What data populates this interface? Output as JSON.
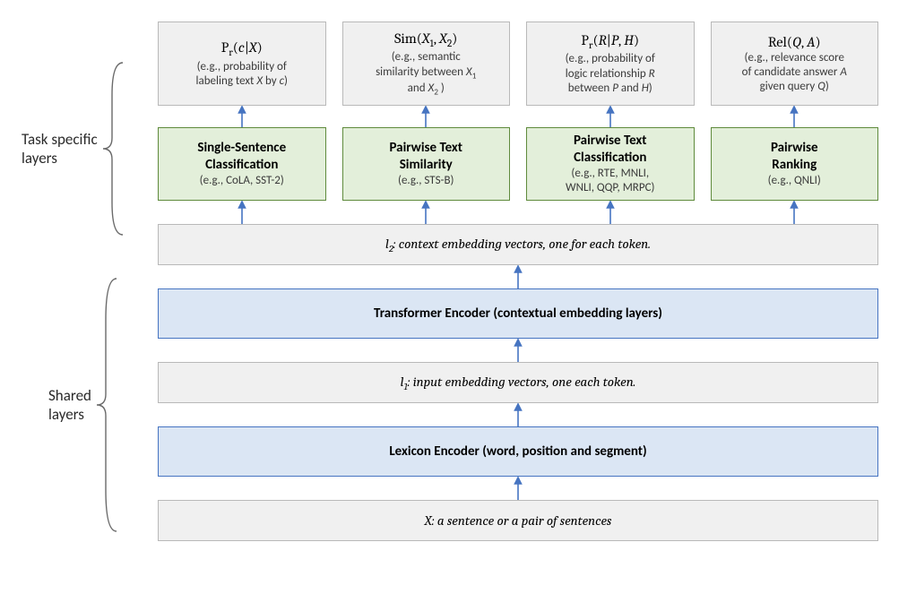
{
  "colors": {
    "gray_fill": "#f0f0f0",
    "gray_border": "#b9b9b9",
    "green_fill": "#e3efda",
    "green_border": "#5f8b3c",
    "blue_fill": "#dbe6f4",
    "blue_border": "#4674c1",
    "arrow": "#4674c1",
    "background": "#ffffff"
  },
  "layout": {
    "task_box_width": 183,
    "task_box_gap": 18,
    "metric_box_height": 94,
    "task_box_height": 78,
    "full_box_height": 46,
    "transformer_box_height": 56,
    "arrow_short": 24,
    "arrow_mid": 26
  },
  "labels": {
    "task_specific": "Task specific\nlayers",
    "shared": "Shared\nlayers"
  },
  "metrics": [
    {
      "formula_html": "P<sub>r</sub>(<i>c</i>|<i>X</i>)",
      "desc_html": "(e.g., probability of<br>labeling text <i>X</i> by <i>c</i>)"
    },
    {
      "formula_html": "Sim(<i>X</i><sub>1</sub>, <i>X</i><sub>2</sub>)",
      "desc_html": "(e.g., semantic<br>similarity between <i>X</i><sub>1</sub><br>and <i>X</i><sub>2</sub> )"
    },
    {
      "formula_html": "P<sub>r</sub>(<i>R</i>|<i>P</i>, <i>H</i>)",
      "desc_html": "(e.g., probability of<br>logic relationship <i>R</i><br>between <i>P</i> and <i>H</i>)"
    },
    {
      "formula_html": "Rel(<i>Q</i>, <i>A</i>)",
      "desc_html": "(e.g., relevance score<br>of candidate answer <i>A</i><br>given query <i>Q</i>)"
    }
  ],
  "tasks": [
    {
      "title_html": "Single-Sentence<br>Classification",
      "example": "(e.g., CoLA, SST-2)"
    },
    {
      "title_html": "Pairwise Text<br>Similarity",
      "example": "(e.g., STS-B)"
    },
    {
      "title_html": "Pairwise Text<br>Classification",
      "example": "(e.g., RTE, MNLI,\nWNLI, QQP, MRPC)"
    },
    {
      "title_html": "Pairwise<br>Ranking",
      "example": "(e.g., QNLI)"
    }
  ],
  "shared_rows": {
    "l2_html": "<i>l</i><sub>2</sub>: context embedding vectors, one for each token.",
    "transformer": "Transformer Encoder (contextual embedding layers)",
    "l1_html": "<i>l</i><sub>1</sub>: input embedding vectors, one each token.",
    "lexicon": "Lexicon Encoder (word, position and segment)",
    "input_html": "<i>X</i>: a sentence or a pair of sentences"
  }
}
